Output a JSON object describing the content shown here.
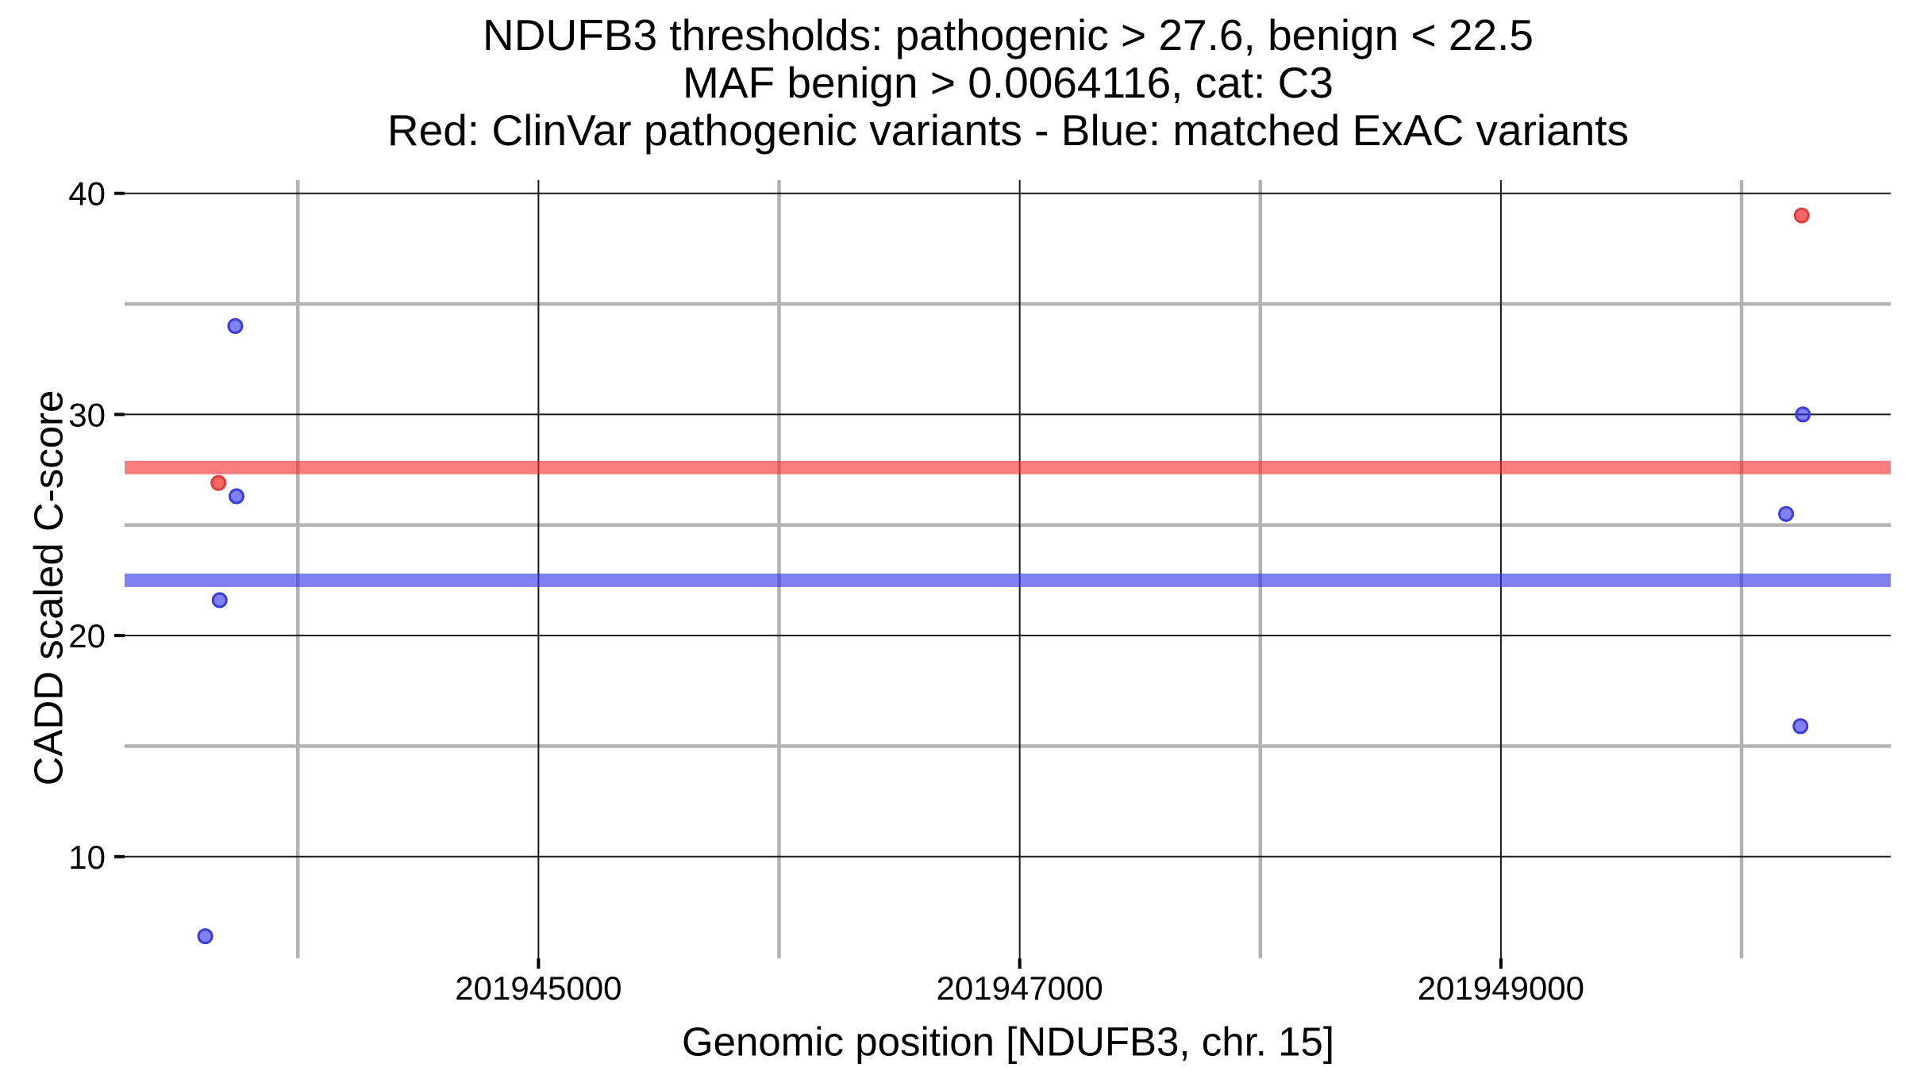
{
  "chart_data": {
    "type": "scatter",
    "title_lines": [
      "NDUFB3 thresholds: pathogenic > 27.6, benign < 22.5",
      "MAF benign > 0.0064116, cat: C3",
      "Red: ClinVar pathogenic variants - Blue: matched ExAC variants"
    ],
    "xlabel": "Genomic position [NDUFB3, chr. 15]",
    "ylabel": "CADD scaled C-score",
    "xlim": [
      201943280,
      201950620
    ],
    "ylim": [
      5.4,
      40.6
    ],
    "x_ticks": [
      {
        "value": 201945000,
        "label": "201945000"
      },
      {
        "value": 201947000,
        "label": "201947000"
      },
      {
        "value": 201949000,
        "label": "201949000"
      }
    ],
    "y_ticks": [
      {
        "value": 10,
        "label": "10"
      },
      {
        "value": 20,
        "label": "20"
      },
      {
        "value": 30,
        "label": "30"
      },
      {
        "value": 40,
        "label": "40"
      }
    ],
    "x_minor_gridlines": [
      201944000,
      201946000,
      201948000,
      201950000
    ],
    "y_minor_gridlines": [
      15,
      25,
      35
    ],
    "grid": {
      "major_color": "#1a1a1a",
      "major_width": 2,
      "minor_color": "#b3b3b3",
      "minor_width": 4.5
    },
    "thresholds": [
      {
        "name": "pathogenic",
        "rule": "pathogenic > 27.6",
        "value": 27.6,
        "color": "rgba(245,45,45,0.62)"
      },
      {
        "name": "benign",
        "rule": "benign < 22.5",
        "value": 22.5,
        "color": "rgba(50,50,235,0.62)"
      }
    ],
    "series": [
      {
        "name": "ClinVar pathogenic variants",
        "color": "red",
        "fill": "rgba(245,45,45,0.72)",
        "stroke": "#e03c3c",
        "points": [
          {
            "x": 201943670,
            "y": 26.9
          },
          {
            "x": 201950250,
            "y": 39.0
          }
        ]
      },
      {
        "name": "matched ExAC variants",
        "color": "blue",
        "fill": "rgba(50,50,235,0.62)",
        "stroke": "#3c3cde",
        "points": [
          {
            "x": 201943740,
            "y": 34.0
          },
          {
            "x": 201943745,
            "y": 26.3
          },
          {
            "x": 201943675,
            "y": 21.6
          },
          {
            "x": 201943615,
            "y": 6.4
          },
          {
            "x": 201950255,
            "y": 30.0
          },
          {
            "x": 201950185,
            "y": 25.5
          },
          {
            "x": 201950245,
            "y": 15.9
          }
        ]
      }
    ],
    "point_radius": 8.5,
    "point_stroke_width": 3,
    "threshold_band_height": 17
  }
}
